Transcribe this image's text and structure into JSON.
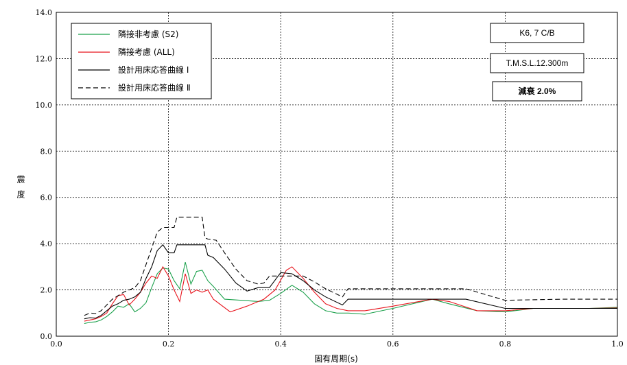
{
  "chart_data": {
    "type": "line",
    "xlabel": "固有周期(s)",
    "ylabel": "震度",
    "xlim": [
      0.0,
      1.0
    ],
    "ylim": [
      0.0,
      14.0
    ],
    "x_ticks": [
      "0.0",
      "0.2",
      "0.4",
      "0.6",
      "0.8",
      "1.0"
    ],
    "y_ticks": [
      "0.0",
      "2.0",
      "4.0",
      "6.0",
      "8.0",
      "10.0",
      "12.0",
      "14.0"
    ],
    "grid": true,
    "legend_position": "top-left",
    "info_boxes": [
      "K6, 7 C/B",
      "T.M.S.L.12.300m",
      "減衰  2.0%"
    ],
    "series": [
      {
        "name": "隣接非考慮 (S2)",
        "color": "#1aa04b",
        "dash": "solid",
        "x": [
          0.05,
          0.06,
          0.07,
          0.08,
          0.09,
          0.1,
          0.11,
          0.12,
          0.13,
          0.14,
          0.15,
          0.16,
          0.17,
          0.18,
          0.19,
          0.2,
          0.21,
          0.22,
          0.23,
          0.24,
          0.25,
          0.26,
          0.27,
          0.28,
          0.3,
          0.33,
          0.36,
          0.38,
          0.4,
          0.42,
          0.44,
          0.46,
          0.48,
          0.5,
          0.52,
          0.55,
          0.6,
          0.67,
          0.7,
          0.75,
          0.8,
          0.85,
          0.9,
          0.95,
          1.0
        ],
        "y": [
          0.55,
          0.6,
          0.62,
          0.7,
          0.85,
          1.05,
          1.3,
          1.25,
          1.4,
          1.05,
          1.2,
          1.45,
          2.1,
          2.7,
          2.95,
          2.9,
          2.4,
          2.05,
          3.2,
          2.25,
          2.8,
          2.85,
          2.4,
          2.15,
          1.6,
          1.55,
          1.5,
          1.55,
          1.85,
          2.2,
          1.9,
          1.4,
          1.1,
          1.0,
          1.0,
          0.95,
          1.2,
          1.6,
          1.4,
          1.1,
          1.05,
          1.2,
          1.2,
          1.2,
          1.25
        ]
      },
      {
        "name": "隣接考慮 (ALL)",
        "color": "#e8141c",
        "dash": "solid",
        "x": [
          0.05,
          0.06,
          0.07,
          0.08,
          0.09,
          0.1,
          0.11,
          0.12,
          0.13,
          0.14,
          0.15,
          0.16,
          0.17,
          0.18,
          0.19,
          0.2,
          0.21,
          0.22,
          0.23,
          0.24,
          0.25,
          0.26,
          0.27,
          0.28,
          0.31,
          0.34,
          0.37,
          0.39,
          0.41,
          0.42,
          0.44,
          0.46,
          0.48,
          0.5,
          0.52,
          0.55,
          0.6,
          0.67,
          0.7,
          0.75,
          0.8,
          0.85,
          0.9,
          0.95,
          1.0
        ],
        "y": [
          0.65,
          0.7,
          0.75,
          0.85,
          1.0,
          1.4,
          1.75,
          1.8,
          1.35,
          1.6,
          1.9,
          2.3,
          2.6,
          2.5,
          3.0,
          2.6,
          2.0,
          1.5,
          2.7,
          1.85,
          2.0,
          1.9,
          2.0,
          1.6,
          1.05,
          1.3,
          1.6,
          2.0,
          2.85,
          3.0,
          2.5,
          1.9,
          1.4,
          1.2,
          1.1,
          1.1,
          1.3,
          1.6,
          1.5,
          1.1,
          1.1,
          1.2,
          1.2,
          1.2,
          1.22
        ]
      },
      {
        "name": "設計用床応答曲線 Ⅰ",
        "color": "#000000",
        "dash": "solid",
        "x": [
          0.05,
          0.06,
          0.07,
          0.08,
          0.09,
          0.1,
          0.11,
          0.12,
          0.13,
          0.14,
          0.15,
          0.16,
          0.17,
          0.18,
          0.19,
          0.2,
          0.21,
          0.215,
          0.22,
          0.265,
          0.27,
          0.28,
          0.3,
          0.32,
          0.34,
          0.36,
          0.38,
          0.4,
          0.42,
          0.44,
          0.46,
          0.48,
          0.51,
          0.52,
          0.73,
          0.8,
          1.0
        ],
        "y": [
          0.75,
          0.8,
          0.78,
          0.9,
          1.1,
          1.3,
          1.4,
          1.55,
          1.6,
          1.7,
          1.9,
          2.5,
          3.0,
          3.7,
          3.95,
          3.6,
          3.6,
          3.95,
          3.95,
          3.95,
          3.5,
          3.4,
          2.9,
          2.3,
          1.95,
          2.1,
          2.1,
          2.75,
          2.7,
          2.4,
          2.0,
          1.7,
          1.35,
          1.6,
          1.6,
          1.2,
          1.2
        ]
      },
      {
        "name": "設計用床応答曲線 Ⅱ",
        "color": "#000000",
        "dash": "dashed",
        "x": [
          0.05,
          0.06,
          0.07,
          0.08,
          0.09,
          0.1,
          0.11,
          0.12,
          0.13,
          0.14,
          0.15,
          0.16,
          0.17,
          0.18,
          0.19,
          0.2,
          0.21,
          0.215,
          0.26,
          0.265,
          0.27,
          0.285,
          0.3,
          0.32,
          0.34,
          0.36,
          0.37,
          0.38,
          0.44,
          0.46,
          0.48,
          0.51,
          0.52,
          0.73,
          0.8,
          0.9,
          1.0
        ],
        "y": [
          0.9,
          1.0,
          0.98,
          1.1,
          1.35,
          1.6,
          1.75,
          1.9,
          2.0,
          2.1,
          2.4,
          3.1,
          3.8,
          4.5,
          4.7,
          4.7,
          4.7,
          5.15,
          5.15,
          4.25,
          4.2,
          4.15,
          3.6,
          2.9,
          2.4,
          2.25,
          2.3,
          2.6,
          2.6,
          2.35,
          2.05,
          1.7,
          2.05,
          2.05,
          1.55,
          1.6,
          1.6
        ]
      }
    ]
  }
}
